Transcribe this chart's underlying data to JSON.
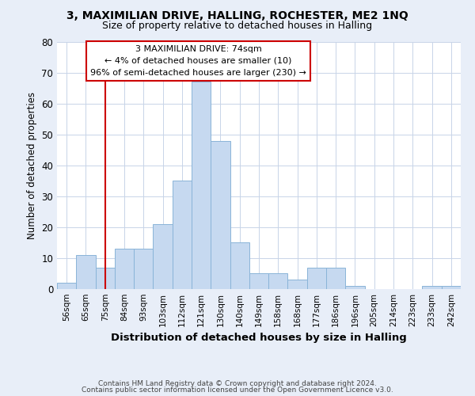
{
  "title1": "3, MAXIMILIAN DRIVE, HALLING, ROCHESTER, ME2 1NQ",
  "title2": "Size of property relative to detached houses in Halling",
  "xlabel": "Distribution of detached houses by size in Halling",
  "ylabel": "Number of detached properties",
  "categories": [
    "56sqm",
    "65sqm",
    "75sqm",
    "84sqm",
    "93sqm",
    "103sqm",
    "112sqm",
    "121sqm",
    "130sqm",
    "140sqm",
    "149sqm",
    "158sqm",
    "168sqm",
    "177sqm",
    "186sqm",
    "196sqm",
    "205sqm",
    "214sqm",
    "223sqm",
    "233sqm",
    "242sqm"
  ],
  "values": [
    2,
    11,
    7,
    13,
    13,
    21,
    35,
    67,
    48,
    15,
    5,
    5,
    3,
    7,
    7,
    1,
    0,
    0,
    0,
    1,
    1
  ],
  "bar_color": "#c6d9f0",
  "bar_edge_color": "#8ab4d8",
  "vline_x_index": 2,
  "vline_color": "#cc0000",
  "annotation_title": "3 MAXIMILIAN DRIVE: 74sqm",
  "annotation_line1": "← 4% of detached houses are smaller (10)",
  "annotation_line2": "96% of semi-detached houses are larger (230) →",
  "annotation_box_color": "#ffffff",
  "annotation_box_edge": "#cc0000",
  "ylim": [
    0,
    80
  ],
  "yticks": [
    0,
    10,
    20,
    30,
    40,
    50,
    60,
    70,
    80
  ],
  "footer1": "Contains HM Land Registry data © Crown copyright and database right 2024.",
  "footer2": "Contains public sector information licensed under the Open Government Licence v3.0.",
  "bg_color": "#e8eef8",
  "plot_bg_color": "#ffffff",
  "grid_color": "#c8d4e8"
}
